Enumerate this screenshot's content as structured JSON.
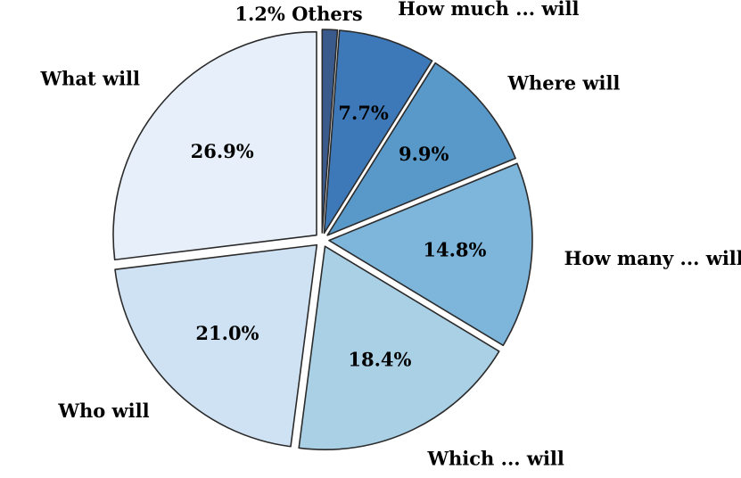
{
  "chart_data": {
    "type": "pie",
    "title": "",
    "start_angle_deg": 90,
    "direction": "clockwise",
    "slices": [
      {
        "label": "Others",
        "value": 1.2,
        "pct_label": "1.2%",
        "color": "#3a5a8c",
        "combined_label": "1.2% Others"
      },
      {
        "label": "How much ... will",
        "value": 7.7,
        "pct_label": "7.7%",
        "color": "#3d79b8"
      },
      {
        "label": "Where will",
        "value": 9.9,
        "pct_label": "9.9%",
        "color": "#5899c9"
      },
      {
        "label": "How many ... will",
        "value": 14.8,
        "pct_label": "14.8%",
        "color": "#7db5db"
      },
      {
        "label": "Which ... will",
        "value": 18.4,
        "pct_label": "18.4%",
        "color": "#aad0e6"
      },
      {
        "label": "Who will",
        "value": 21.0,
        "pct_label": "21.0%",
        "color": "#cfe2f3"
      },
      {
        "label": "What will",
        "value": 26.9,
        "pct_label": "26.9%",
        "color": "#e7f0fa"
      }
    ]
  }
}
